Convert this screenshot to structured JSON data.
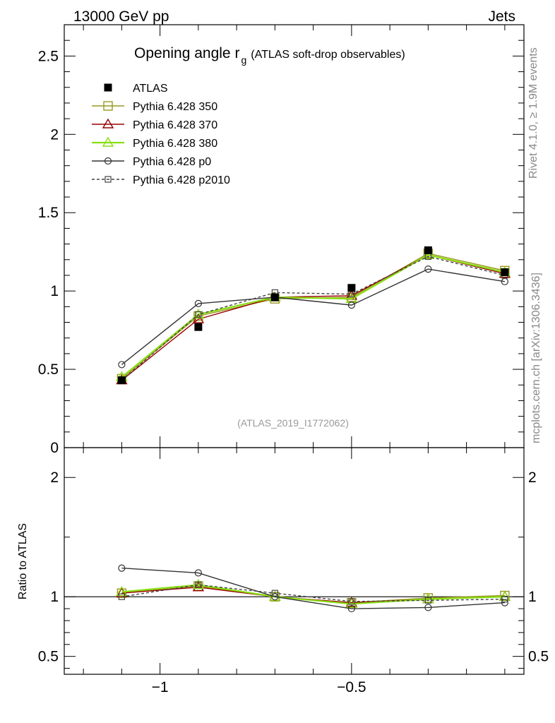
{
  "header": {
    "left": "13000 GeV pp",
    "right": "Jets"
  },
  "side_labels": {
    "rivet": "Rivet 4.1.0, ≥ 1.9M events",
    "source": "mcplots.cern.ch [arXiv:1306.3436]"
  },
  "chart_data": {
    "type": "line",
    "title_main": "Opening angle r",
    "title_sub": "g",
    "title_suffix": "(ATLAS soft-drop observables)",
    "watermark": "(ATLAS_2019_I1772062)",
    "x": [
      -1.1,
      -0.9,
      -0.7,
      -0.5,
      -0.3,
      -0.1
    ],
    "xlim": [
      -1.25,
      -0.05
    ],
    "xticks": [
      "−1",
      "−0.5"
    ],
    "xtick_values": [
      -1.0,
      -0.5
    ],
    "main": {
      "ylim": [
        0,
        2.7
      ],
      "yticks": [
        "0",
        "0.5",
        "1",
        "1.5",
        "2",
        "2.5"
      ],
      "ytick_values": [
        0,
        0.5,
        1,
        1.5,
        2,
        2.5
      ],
      "data": {
        "name": "ATLAS",
        "values": [
          0.43,
          0.77,
          0.96,
          1.02,
          1.26,
          1.12
        ]
      },
      "series": [
        {
          "name": "Pythia 6.428 350",
          "color": "#999922",
          "marker": "square",
          "dash": "",
          "values": [
            0.44,
            0.84,
            0.95,
            0.96,
            1.24,
            1.13
          ]
        },
        {
          "name": "Pythia 6.428 370",
          "color": "#990000",
          "marker": "triangle",
          "dash": "",
          "values": [
            0.43,
            0.82,
            0.96,
            0.97,
            1.23,
            1.11
          ]
        },
        {
          "name": "Pythia 6.428 380",
          "color": "#88dd11",
          "marker": "triangle",
          "dash": "",
          "values": [
            0.45,
            0.85,
            0.96,
            0.95,
            1.23,
            1.12
          ]
        },
        {
          "name": "Pythia 6.428 p0",
          "color": "#333333",
          "marker": "circle",
          "dash": "",
          "values": [
            0.53,
            0.92,
            0.96,
            0.91,
            1.14,
            1.06
          ]
        },
        {
          "name": "Pythia 6.428 p2010",
          "color": "#444444",
          "marker": "smallsquare",
          "dash": "4,3",
          "values": [
            0.43,
            0.85,
            0.99,
            0.98,
            1.22,
            1.1
          ]
        }
      ]
    },
    "ratio": {
      "ylabel": "Ratio to ATLAS",
      "ylim": [
        0.35,
        2.25
      ],
      "yticks": [
        "0.5",
        "1",
        "2"
      ],
      "ytick_values": [
        0.5,
        1,
        2
      ],
      "series": [
        {
          "name": "Pythia 6.428 350",
          "values": [
            1.03,
            1.09,
            1.0,
            0.95,
            0.99,
            1.01
          ]
        },
        {
          "name": "Pythia 6.428 370",
          "values": [
            1.03,
            1.08,
            1.0,
            0.95,
            0.98,
            1.0
          ]
        },
        {
          "name": "Pythia 6.428 380",
          "values": [
            1.04,
            1.1,
            1.0,
            0.94,
            0.98,
            1.0
          ]
        },
        {
          "name": "Pythia 6.428 p0",
          "values": [
            1.24,
            1.2,
            1.0,
            0.9,
            0.91,
            0.95
          ]
        },
        {
          "name": "Pythia 6.428 p2010",
          "values": [
            1.0,
            1.1,
            1.03,
            0.96,
            0.97,
            0.98
          ]
        }
      ]
    }
  }
}
